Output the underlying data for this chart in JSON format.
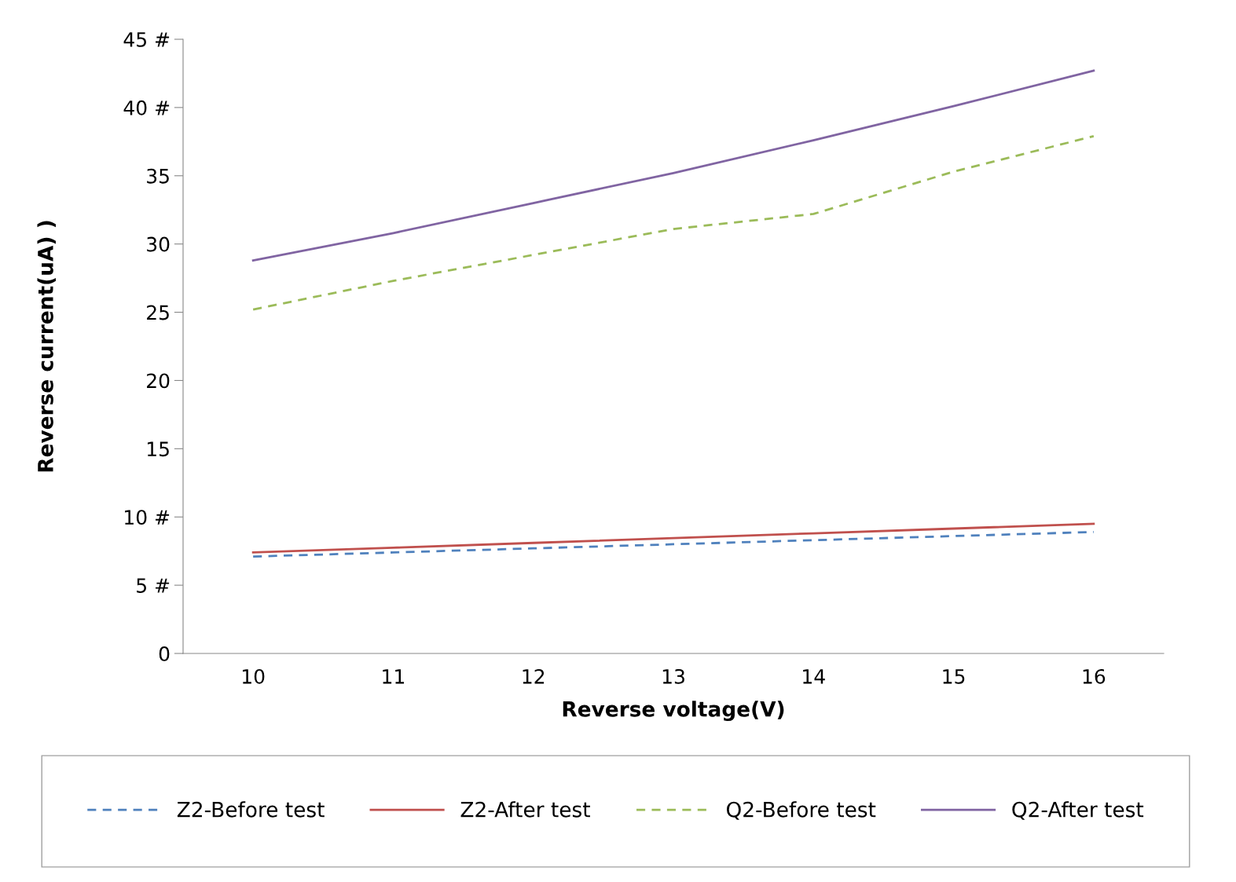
{
  "chart_data": {
    "type": "line",
    "xlabel": "Reverse voltage(V)",
    "ylabel": "Reverse current(uA) )",
    "categories": [
      "10",
      "11",
      "12",
      "13",
      "14",
      "15",
      "16"
    ],
    "ylim": [
      0,
      45
    ],
    "yticks": [
      0,
      {
        "value": 5,
        "label": "5 #"
      },
      {
        "value": 10,
        "label": "10 #"
      },
      15,
      20,
      25,
      30,
      35,
      {
        "value": 40,
        "label": "40 #"
      },
      {
        "value": 45,
        "label": "45 #"
      }
    ],
    "grid": false,
    "legend": "bottom",
    "series": [
      {
        "name": "Z2-Before test",
        "color": "#4f81bd",
        "line_style": "dashed",
        "values": [
          7.1,
          7.4,
          7.7,
          8.0,
          8.3,
          8.6,
          8.9
        ]
      },
      {
        "name": "Z2-After test",
        "color": "#c0504d",
        "line_style": "solid",
        "values": [
          7.4,
          7.75,
          8.1,
          8.45,
          8.8,
          9.15,
          9.5
        ]
      },
      {
        "name": "Q2-Before test",
        "color": "#9bbb59",
        "line_style": "dashed",
        "values": [
          25.2,
          27.3,
          29.2,
          31.1,
          32.2,
          35.3,
          37.9
        ]
      },
      {
        "name": "Q2-After test",
        "color": "#8064a2",
        "line_style": "solid",
        "values": [
          28.8,
          30.8,
          33.0,
          35.2,
          37.6,
          40.1,
          42.7
        ]
      }
    ]
  }
}
